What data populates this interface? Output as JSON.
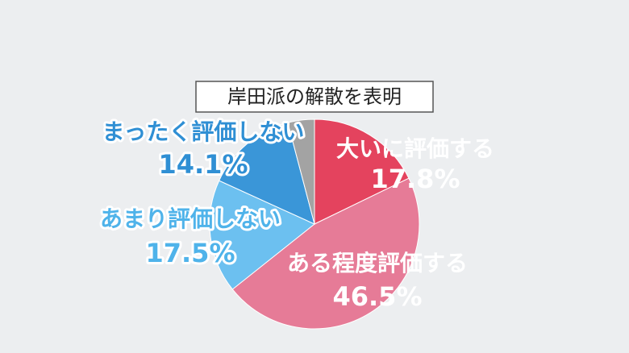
{
  "chart_data": {
    "type": "pie",
    "title": "岸田派の解散を表明",
    "categories": [
      "大いに評価する",
      "ある程度評価する",
      "あまり評価しない",
      "まったく評価しない",
      null
    ],
    "values": [
      17.8,
      46.5,
      17.5,
      14.1,
      4.1
    ],
    "value_labels": [
      "17.8%",
      "46.5%",
      "17.5%",
      "14.1%",
      null
    ],
    "colors": [
      "#e4435e",
      "#e67b97",
      "#6cc0f0",
      "#3a96d8",
      "#a3a3a3"
    ]
  }
}
